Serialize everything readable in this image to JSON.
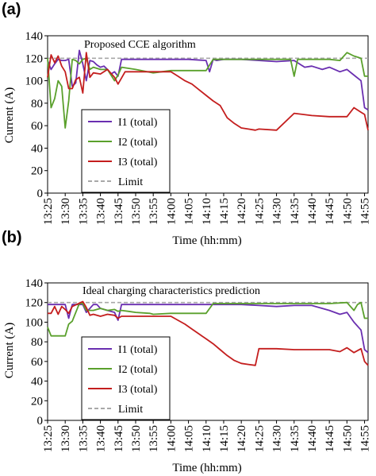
{
  "colors": {
    "I1": "#6a2fb0",
    "I2": "#5aa02c",
    "I3": "#c41e1e",
    "Limit": "#a8a8a8",
    "axis": "#000000",
    "legend_border": "#000000"
  },
  "chart_data": [
    {
      "panel_label": "(a)",
      "type": "line",
      "annotation": "Proposed CCE algorithm",
      "xlabel": "Time (hh:mm)",
      "ylabel": "Current (A)",
      "xlim": [
        "13:25",
        "14:56"
      ],
      "ylim": [
        0,
        140
      ],
      "yticks": [
        0,
        20,
        40,
        60,
        80,
        100,
        120,
        140
      ],
      "xticks": [
        "13:25",
        "13:30",
        "13:35",
        "13:40",
        "13:45",
        "13:50",
        "13:55",
        "14:00",
        "14:05",
        "14:10",
        "14:15",
        "14:20",
        "14:25",
        "14:30",
        "14:35",
        "14:40",
        "14:45",
        "14:50",
        "14:55"
      ],
      "grid": false,
      "legend_position": "lower-left",
      "series": [
        {
          "name": "I1 (total)",
          "key": "I1",
          "x": [
            "13:25",
            "13:26",
            "13:27",
            "13:28",
            "13:29",
            "13:30",
            "13:31",
            "13:32",
            "13:33",
            "13:34",
            "13:35",
            "13:36",
            "13:37",
            "13:38",
            "13:39",
            "13:40",
            "13:41",
            "13:42",
            "13:43",
            "13:44",
            "13:45",
            "13:46",
            "13:48",
            "13:50",
            "13:55",
            "14:00",
            "14:05",
            "14:10",
            "14:11",
            "14:12",
            "14:13",
            "14:15",
            "14:20",
            "14:25",
            "14:30",
            "14:35",
            "14:38",
            "14:40",
            "14:43",
            "14:45",
            "14:48",
            "14:50",
            "14:52",
            "14:54",
            "14:55",
            "14:56"
          ],
          "values": [
            118,
            110,
            115,
            119,
            118,
            118,
            119,
            95,
            98,
            127,
            115,
            100,
            118,
            117,
            114,
            112,
            113,
            110,
            106,
            108,
            104,
            119,
            119,
            119,
            119,
            119,
            119,
            118,
            108,
            119,
            118,
            119,
            119,
            118,
            117,
            118,
            112,
            113,
            110,
            112,
            108,
            110,
            105,
            100,
            76,
            74
          ]
        },
        {
          "name": "I2 (total)",
          "key": "I2",
          "x": [
            "13:25",
            "13:26",
            "13:27",
            "13:28",
            "13:29",
            "13:30",
            "13:31",
            "13:32",
            "13:33",
            "13:34",
            "13:35",
            "13:36",
            "13:37",
            "13:38",
            "13:40",
            "13:42",
            "13:44",
            "13:45",
            "13:46",
            "13:50",
            "13:55",
            "14:00",
            "14:05",
            "14:10",
            "14:12",
            "14:15",
            "14:20",
            "14:25",
            "14:30",
            "14:34",
            "14:35",
            "14:36",
            "14:40",
            "14:45",
            "14:48",
            "14:50",
            "14:52",
            "14:53",
            "14:54",
            "14:55",
            "14:56"
          ],
          "values": [
            120,
            76,
            84,
            100,
            95,
            58,
            82,
            119,
            118,
            115,
            119,
            120,
            110,
            112,
            110,
            110,
            100,
            105,
            112,
            110,
            107,
            109,
            109,
            109,
            119,
            119,
            119,
            119,
            119,
            119,
            104,
            119,
            119,
            119,
            118,
            125,
            122,
            121,
            120,
            104,
            104
          ]
        },
        {
          "name": "I3 (total)",
          "key": "I3",
          "x": [
            "13:25",
            "13:26",
            "13:27",
            "13:28",
            "13:29",
            "13:30",
            "13:31",
            "13:32",
            "13:33",
            "13:34",
            "13:35",
            "13:36",
            "13:37",
            "13:38",
            "13:40",
            "13:42",
            "13:44",
            "13:45",
            "13:47",
            "13:50",
            "13:55",
            "14:00",
            "14:02",
            "14:04",
            "14:06",
            "14:08",
            "14:10",
            "14:12",
            "14:14",
            "14:16",
            "14:18",
            "14:20",
            "14:22",
            "14:24",
            "14:25",
            "14:30",
            "14:35",
            "14:40",
            "14:45",
            "14:48",
            "14:50",
            "14:52",
            "14:54",
            "14:55",
            "14:56"
          ],
          "values": [
            103,
            123,
            116,
            122,
            113,
            108,
            93,
            93,
            101,
            103,
            89,
            125,
            103,
            107,
            106,
            110,
            103,
            97,
            108,
            108,
            108,
            108,
            104,
            100,
            97,
            92,
            87,
            82,
            78,
            67,
            62,
            58,
            57,
            56,
            57,
            56,
            71,
            69,
            68,
            68,
            68,
            76,
            72,
            70,
            56
          ]
        },
        {
          "name": "Limit",
          "key": "Limit",
          "dashed": true,
          "x": [
            "13:25",
            "14:56"
          ],
          "values": [
            120,
            120
          ]
        }
      ]
    },
    {
      "panel_label": "(b)",
      "type": "line",
      "annotation": "Ideal charging characteristics prediction",
      "xlabel": "Time (hh:mm)",
      "ylabel": "Current (A)",
      "xlim": [
        "13:25",
        "14:56"
      ],
      "ylim": [
        0,
        140
      ],
      "yticks": [
        0,
        20,
        40,
        60,
        80,
        100,
        120,
        140
      ],
      "xticks": [
        "13:25",
        "13:30",
        "13:35",
        "13:40",
        "13:45",
        "13:50",
        "13:55",
        "14:00",
        "14:05",
        "14:10",
        "14:15",
        "14:20",
        "14:25",
        "14:30",
        "14:35",
        "14:40",
        "14:45",
        "14:50",
        "14:55"
      ],
      "grid": false,
      "legend_position": "lower-left",
      "series": [
        {
          "name": "I1 (total)",
          "key": "I1",
          "x": [
            "13:25",
            "13:26",
            "13:30",
            "13:31",
            "13:32",
            "13:34",
            "13:35",
            "13:36",
            "13:38",
            "13:39",
            "13:40",
            "13:42",
            "13:44",
            "13:45",
            "13:46",
            "13:50",
            "13:55",
            "14:00",
            "14:05",
            "14:10",
            "14:15",
            "14:20",
            "14:25",
            "14:30",
            "14:35",
            "14:40",
            "14:45",
            "14:48",
            "14:50",
            "14:52",
            "14:54",
            "14:55",
            "14:56"
          ],
          "values": [
            118,
            118,
            118,
            104,
            118,
            118,
            118,
            110,
            118,
            118,
            114,
            112,
            110,
            102,
            118,
            118,
            118,
            118,
            118,
            118,
            118,
            118,
            117,
            116,
            117,
            117,
            112,
            108,
            110,
            100,
            92,
            72,
            69
          ]
        },
        {
          "name": "I2 (total)",
          "key": "I2",
          "x": [
            "13:25",
            "13:26",
            "13:27",
            "13:30",
            "13:31",
            "13:32",
            "13:34",
            "13:35",
            "13:36",
            "13:38",
            "13:40",
            "13:42",
            "13:44",
            "13:45",
            "13:46",
            "13:48",
            "13:50",
            "13:54",
            "13:55",
            "14:00",
            "14:05",
            "14:10",
            "14:12",
            "14:15",
            "14:20",
            "14:25",
            "14:30",
            "14:35",
            "14:40",
            "14:45",
            "14:50",
            "14:52",
            "14:53",
            "14:54",
            "14:55",
            "14:56"
          ],
          "values": [
            95,
            86,
            86,
            86,
            98,
            101,
            119,
            119,
            112,
            112,
            114,
            112,
            113,
            111,
            112,
            111,
            110,
            109,
            108,
            109,
            109,
            109,
            119,
            119,
            119,
            119,
            119,
            119,
            119,
            119,
            120,
            112,
            118,
            120,
            104,
            104
          ]
        },
        {
          "name": "I3 (total)",
          "key": "I3",
          "x": [
            "13:25",
            "13:26",
            "13:27",
            "13:28",
            "13:29",
            "13:30",
            "13:31",
            "13:32",
            "13:35",
            "13:36",
            "13:37",
            "13:38",
            "13:40",
            "13:42",
            "13:44",
            "13:45",
            "13:46",
            "13:50",
            "13:55",
            "14:00",
            "14:02",
            "14:04",
            "14:06",
            "14:08",
            "14:10",
            "14:12",
            "14:14",
            "14:16",
            "14:18",
            "14:20",
            "14:22",
            "14:24",
            "14:25",
            "14:30",
            "14:35",
            "14:40",
            "14:45",
            "14:48",
            "14:50",
            "14:52",
            "14:54",
            "14:55",
            "14:56"
          ],
          "values": [
            109,
            109,
            116,
            108,
            116,
            113,
            109,
            116,
            121,
            115,
            107,
            108,
            106,
            108,
            107,
            104,
            106,
            106,
            106,
            106,
            102,
            98,
            93,
            88,
            83,
            78,
            72,
            66,
            61,
            58,
            57,
            56,
            73,
            73,
            72,
            72,
            72,
            70,
            74,
            69,
            73,
            60,
            56
          ]
        },
        {
          "name": "Limit",
          "key": "Limit",
          "dashed": true,
          "x": [
            "13:25",
            "14:56"
          ],
          "values": [
            120,
            120
          ]
        }
      ]
    }
  ]
}
